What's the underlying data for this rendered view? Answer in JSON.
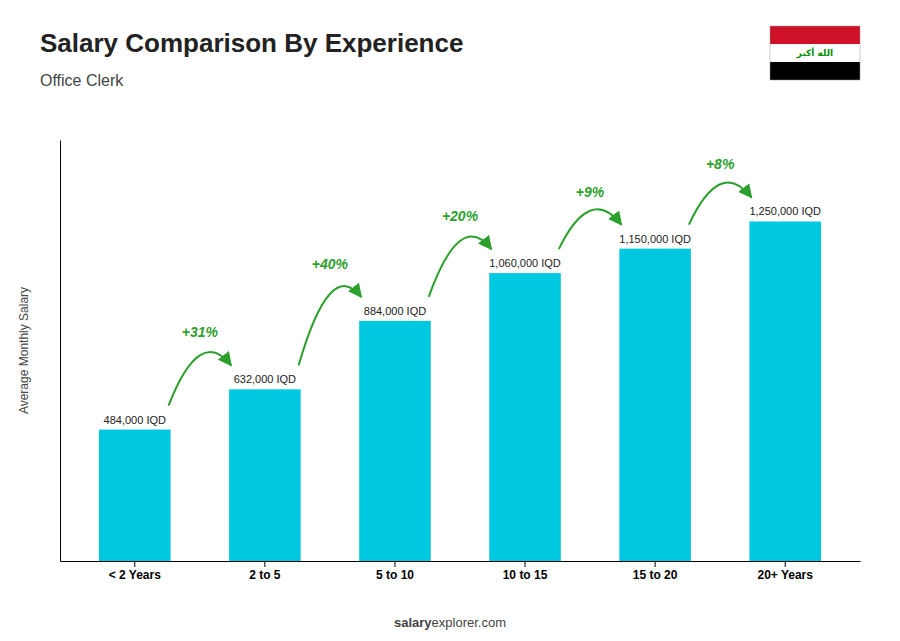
{
  "chart_data": {
    "type": "bar",
    "title": "Salary Comparison By Experience",
    "subtitle": "Office Clerk",
    "y_label": "Average Monthly Salary",
    "source": [
      "salary",
      "explorer.com"
    ],
    "flag_text": "الله أكبر",
    "categories": [
      "< 2 Years",
      "2 to 5",
      "5 to 10",
      "10 to 15",
      "15 to 20",
      "20+ Years"
    ],
    "values": [
      484000,
      632000,
      884000,
      1060000,
      1150000,
      1250000
    ],
    "value_labels": [
      "484,000 IQD",
      "632,000 IQD",
      "884,000 IQD",
      "1,060,000 IQD",
      "1,150,000 IQD",
      "1,250,000 IQD"
    ],
    "data_labels": true,
    "annotations": [
      "+31%",
      "+40%",
      "+20%",
      "+9%",
      "+8%"
    ],
    "color": "#00c8e0",
    "ylim": [
      0,
      1550000
    ],
    "tick_labels": "x",
    "grid": false
  }
}
